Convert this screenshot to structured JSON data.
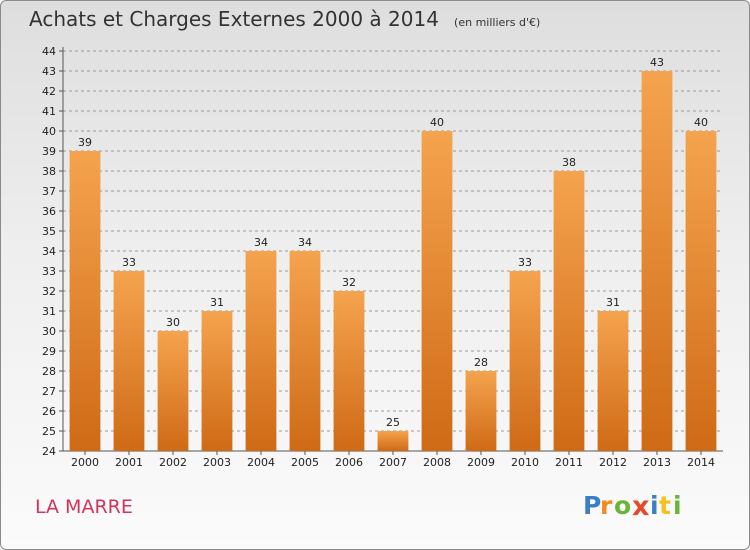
{
  "title": "Achats et Charges Externes 2000 à 2014",
  "unit": "(en milliers d'€)",
  "commune": "LA MARRE",
  "logo_text": "Proxiti",
  "colors": {
    "bar_light": "#f5a34e",
    "bar_dark": "#cf6a16",
    "commune_text": "#d2335b",
    "grid": "#9a9a9a"
  },
  "chart_data": {
    "type": "bar",
    "title": "Achats et Charges Externes 2000 à 2014",
    "subtitle": "(en milliers d'€)",
    "xlabel": "",
    "ylabel": "",
    "categories": [
      "2000",
      "2001",
      "2002",
      "2003",
      "2004",
      "2005",
      "2006",
      "2007",
      "2008",
      "2009",
      "2010",
      "2011",
      "2012",
      "2013",
      "2014"
    ],
    "values": [
      39,
      33,
      30,
      31,
      34,
      34,
      32,
      25,
      40,
      28,
      33,
      38,
      31,
      43,
      40
    ],
    "ylim": [
      24,
      44
    ],
    "ytick_step": 1,
    "grid": true,
    "data_labels": true
  }
}
